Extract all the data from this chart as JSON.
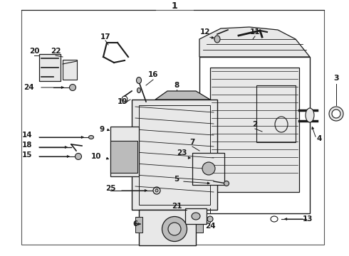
{
  "bg_color": "#ffffff",
  "line_color": "#1a1a1a",
  "fig_width": 4.9,
  "fig_height": 3.6,
  "dpi": 100,
  "title": "1",
  "part3_label": "3",
  "font_size_labels": 7.5,
  "font_size_title": 9,
  "border_lw": 1.0,
  "part_lw": 0.8,
  "gray_fill": "#cccccc",
  "light_gray": "#e8e8e8",
  "mid_gray": "#bbbbbb"
}
